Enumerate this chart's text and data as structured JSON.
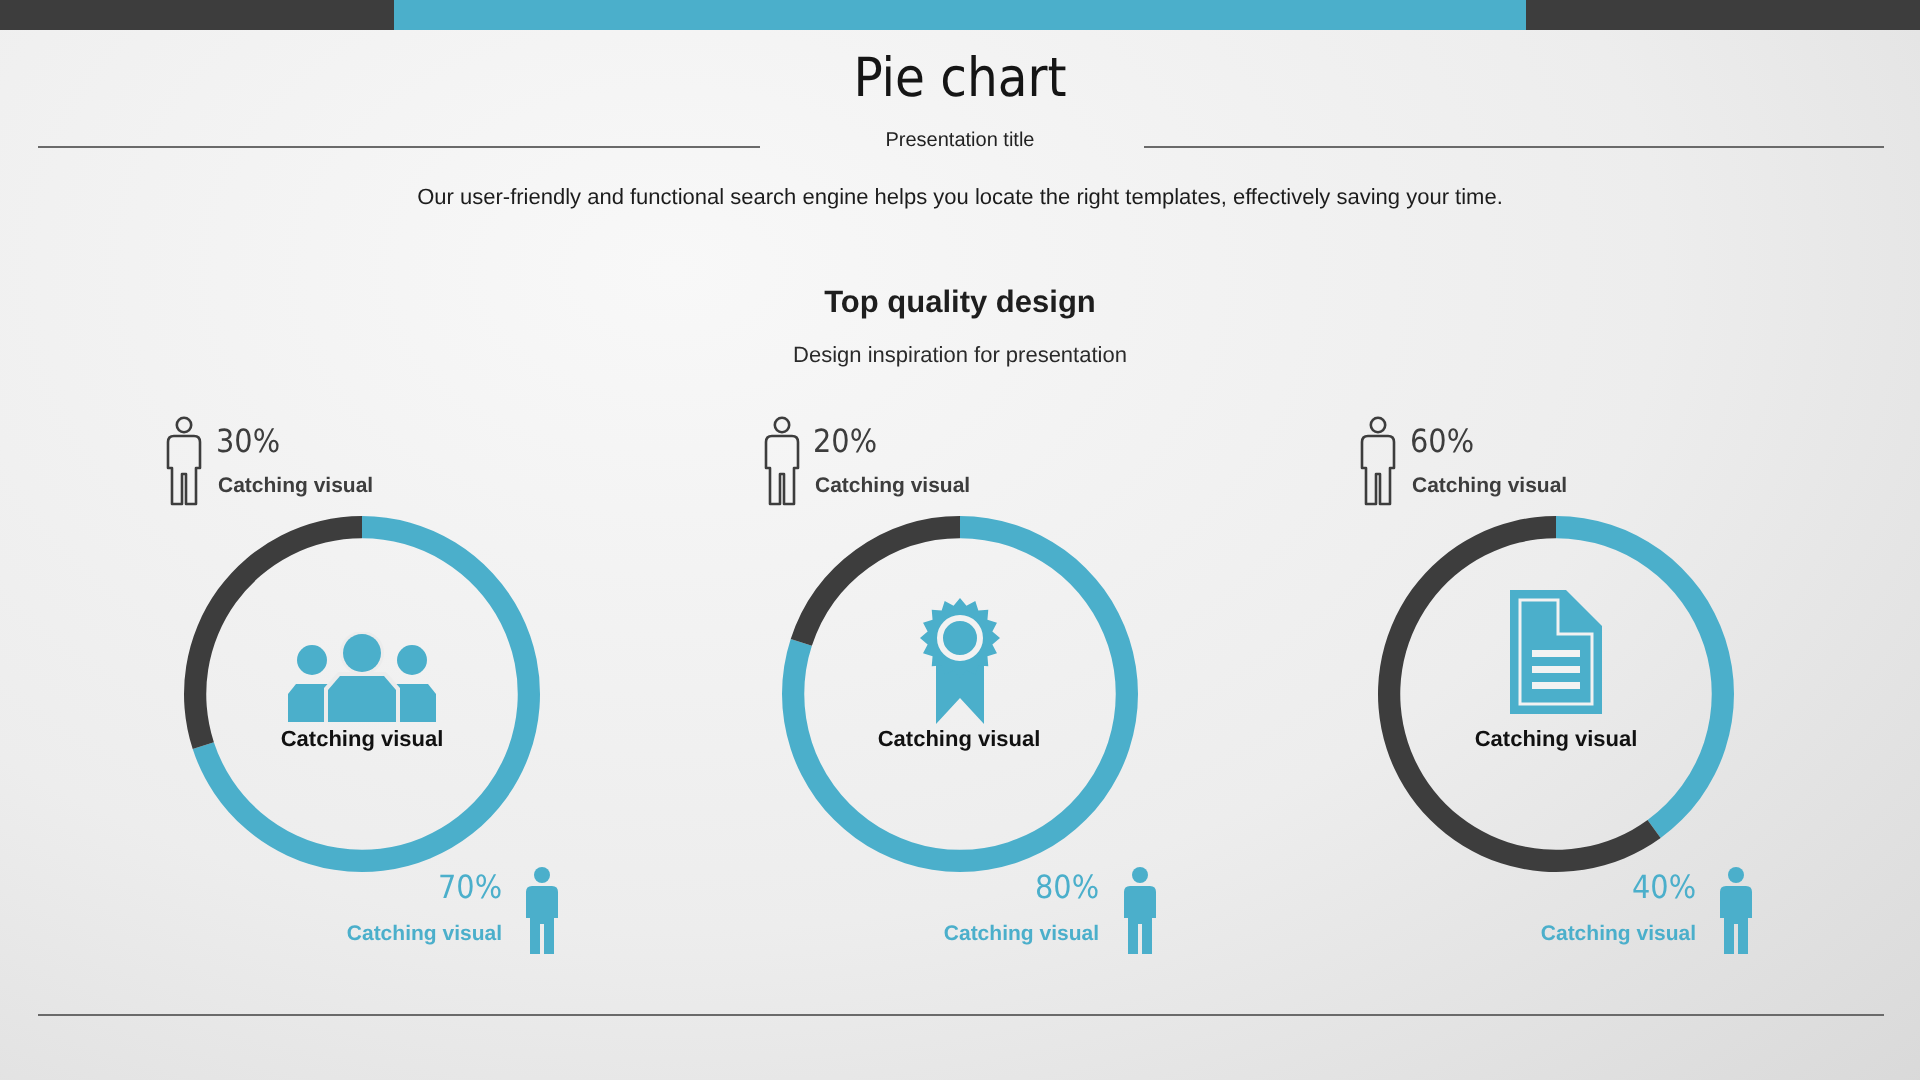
{
  "chart_data": [
    {
      "type": "other",
      "title": "Pie chart",
      "subtitle": "Presentation title",
      "annotations": [
        "Our user-friendly and functional search engine helps you locate the right templates, effectively saving your time.",
        "Top quality design",
        "Design inspiration for presentation"
      ]
    },
    {
      "type": "donut",
      "categories": [
        "Catching visual",
        "Catching visual"
      ],
      "values": [
        70,
        30
      ],
      "colors": [
        "#4bafcb",
        "#3d3d3d"
      ],
      "value_labels": [
        "70%",
        "30%"
      ],
      "annotations": [
        "Catching visual"
      ]
    },
    {
      "type": "donut",
      "categories": [
        "Catching visual",
        "Catching visual"
      ],
      "values": [
        80,
        20
      ],
      "colors": [
        "#4bafcb",
        "#3d3d3d"
      ],
      "value_labels": [
        "80%",
        "20%"
      ],
      "annotations": [
        "Catching visual"
      ]
    },
    {
      "type": "donut",
      "categories": [
        "Catching visual",
        "Catching visual"
      ],
      "values": [
        40,
        60
      ],
      "colors": [
        "#4bafcb",
        "#3d3d3d"
      ],
      "value_labels": [
        "40%",
        "60%"
      ],
      "annotations": [
        "Catching visual"
      ]
    }
  ]
}
